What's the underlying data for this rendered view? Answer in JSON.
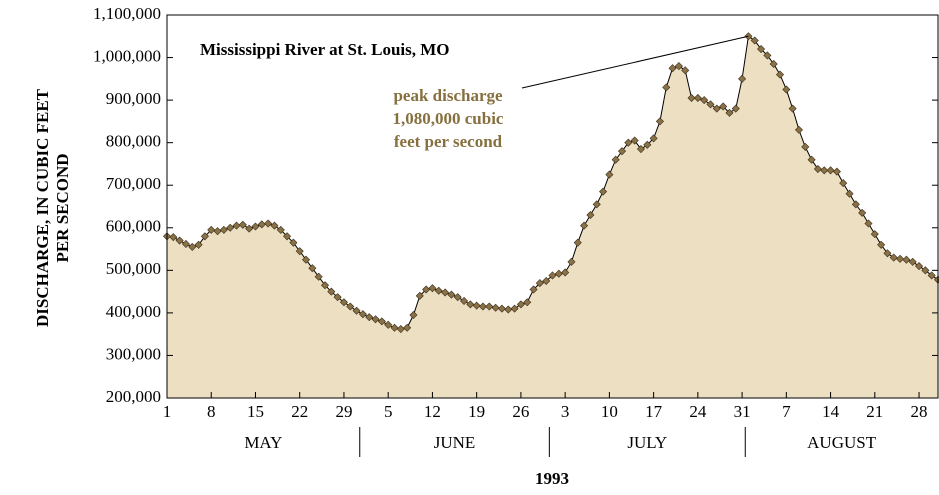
{
  "chart_data": {
    "type": "area",
    "title": "Mississippi River  at St. Louis, MO",
    "annotation": [
      "peak discharge",
      "1,080,000 cubic",
      "feet per second"
    ],
    "ylabel": [
      "DISCHARGE, IN CUBIC FEET",
      "PER SECOND"
    ],
    "xlabel": "1993",
    "months": [
      "MAY",
      "JUNE",
      "JULY",
      "AUGUST"
    ],
    "fill_color": "#ecdfc2",
    "line_color": "#000000",
    "marker_color": "#8a7146",
    "annotation_color": "#86703f",
    "x": [
      "1993-05-01",
      "1993-05-02",
      "1993-05-03",
      "1993-05-04",
      "1993-05-05",
      "1993-05-06",
      "1993-05-07",
      "1993-05-08",
      "1993-05-09",
      "1993-05-10",
      "1993-05-11",
      "1993-05-12",
      "1993-05-13",
      "1993-05-14",
      "1993-05-15",
      "1993-05-16",
      "1993-05-17",
      "1993-05-18",
      "1993-05-19",
      "1993-05-20",
      "1993-05-21",
      "1993-05-22",
      "1993-05-23",
      "1993-05-24",
      "1993-05-25",
      "1993-05-26",
      "1993-05-27",
      "1993-05-28",
      "1993-05-29",
      "1993-05-30",
      "1993-05-31",
      "1993-06-01",
      "1993-06-02",
      "1993-06-03",
      "1993-06-04",
      "1993-06-05",
      "1993-06-06",
      "1993-06-07",
      "1993-06-08",
      "1993-06-09",
      "1993-06-10",
      "1993-06-11",
      "1993-06-12",
      "1993-06-13",
      "1993-06-14",
      "1993-06-15",
      "1993-06-16",
      "1993-06-17",
      "1993-06-18",
      "1993-06-19",
      "1993-06-20",
      "1993-06-21",
      "1993-06-22",
      "1993-06-23",
      "1993-06-24",
      "1993-06-25",
      "1993-06-26",
      "1993-06-27",
      "1993-06-28",
      "1993-06-29",
      "1993-06-30",
      "1993-07-01",
      "1993-07-02",
      "1993-07-03",
      "1993-07-04",
      "1993-07-05",
      "1993-07-06",
      "1993-07-07",
      "1993-07-08",
      "1993-07-09",
      "1993-07-10",
      "1993-07-11",
      "1993-07-12",
      "1993-07-13",
      "1993-07-14",
      "1993-07-15",
      "1993-07-16",
      "1993-07-17",
      "1993-07-18",
      "1993-07-19",
      "1993-07-20",
      "1993-07-21",
      "1993-07-22",
      "1993-07-23",
      "1993-07-24",
      "1993-07-25",
      "1993-07-26",
      "1993-07-27",
      "1993-07-28",
      "1993-07-29",
      "1993-07-30",
      "1993-07-31",
      "1993-08-01",
      "1993-08-02",
      "1993-08-03",
      "1993-08-04",
      "1993-08-05",
      "1993-08-06",
      "1993-08-07",
      "1993-08-08",
      "1993-08-09",
      "1993-08-10",
      "1993-08-11",
      "1993-08-12",
      "1993-08-13",
      "1993-08-14",
      "1993-08-15",
      "1993-08-16",
      "1993-08-17",
      "1993-08-18",
      "1993-08-19",
      "1993-08-20",
      "1993-08-21",
      "1993-08-22",
      "1993-08-23",
      "1993-08-24",
      "1993-08-25",
      "1993-08-26",
      "1993-08-27",
      "1993-08-28",
      "1993-08-29",
      "1993-08-30",
      "1993-08-31"
    ],
    "values": [
      580000,
      578000,
      570000,
      562000,
      555000,
      560000,
      580000,
      595000,
      592000,
      595000,
      600000,
      605000,
      607000,
      598000,
      603000,
      608000,
      610000,
      605000,
      595000,
      580000,
      565000,
      545000,
      525000,
      505000,
      485000,
      465000,
      450000,
      437000,
      425000,
      415000,
      405000,
      397000,
      390000,
      385000,
      380000,
      372000,
      365000,
      362000,
      365000,
      395000,
      440000,
      455000,
      458000,
      452000,
      448000,
      443000,
      437000,
      428000,
      420000,
      417000,
      415000,
      415000,
      412000,
      410000,
      408000,
      410000,
      420000,
      425000,
      455000,
      470000,
      475000,
      488000,
      492000,
      495000,
      520000,
      565000,
      605000,
      630000,
      655000,
      685000,
      725000,
      760000,
      780000,
      800000,
      805000,
      785000,
      795000,
      810000,
      850000,
      930000,
      975000,
      980000,
      970000,
      905000,
      905000,
      900000,
      890000,
      880000,
      885000,
      870000,
      880000,
      950000,
      1050000,
      1040000,
      1020000,
      1005000,
      985000,
      960000,
      925000,
      880000,
      830000,
      790000,
      760000,
      738000,
      735000,
      735000,
      732000,
      705000,
      680000,
      655000,
      635000,
      610000,
      585000,
      560000,
      540000,
      530000,
      527000,
      525000,
      520000,
      510000,
      500000,
      488000,
      478000
    ],
    "xlim": [
      "1993-05-01",
      "1993-08-31"
    ],
    "xticks": [
      {
        "value": "1993-05-01",
        "label": "1"
      },
      {
        "value": "1993-05-08",
        "label": "8"
      },
      {
        "value": "1993-05-15",
        "label": "15"
      },
      {
        "value": "1993-05-22",
        "label": "22"
      },
      {
        "value": "1993-05-29",
        "label": "29"
      },
      {
        "value": "1993-06-05",
        "label": "5"
      },
      {
        "value": "1993-06-12",
        "label": "12"
      },
      {
        "value": "1993-06-19",
        "label": "19"
      },
      {
        "value": "1993-06-26",
        "label": "26"
      },
      {
        "value": "1993-07-03",
        "label": "3"
      },
      {
        "value": "1993-07-10",
        "label": "10"
      },
      {
        "value": "1993-07-17",
        "label": "17"
      },
      {
        "value": "1993-07-24",
        "label": "24"
      },
      {
        "value": "1993-07-31",
        "label": "31"
      },
      {
        "value": "1993-08-07",
        "label": "7"
      },
      {
        "value": "1993-08-14",
        "label": "14"
      },
      {
        "value": "1993-08-21",
        "label": "21"
      },
      {
        "value": "1993-08-28",
        "label": "28"
      }
    ],
    "ylim": [
      200000,
      1100000
    ],
    "yticks": [
      {
        "value": 200000,
        "label": "200,000"
      },
      {
        "value": 300000,
        "label": "300,000"
      },
      {
        "value": 400000,
        "label": "400,000"
      },
      {
        "value": 500000,
        "label": "500,000"
      },
      {
        "value": 600000,
        "label": "600,000"
      },
      {
        "value": 700000,
        "label": "700,000"
      },
      {
        "value": 800000,
        "label": "800,000"
      },
      {
        "value": 900000,
        "label": "900,000"
      },
      {
        "value": 1000000,
        "label": "1,000,000"
      },
      {
        "value": 1100000,
        "label": "1,100,000"
      }
    ]
  }
}
